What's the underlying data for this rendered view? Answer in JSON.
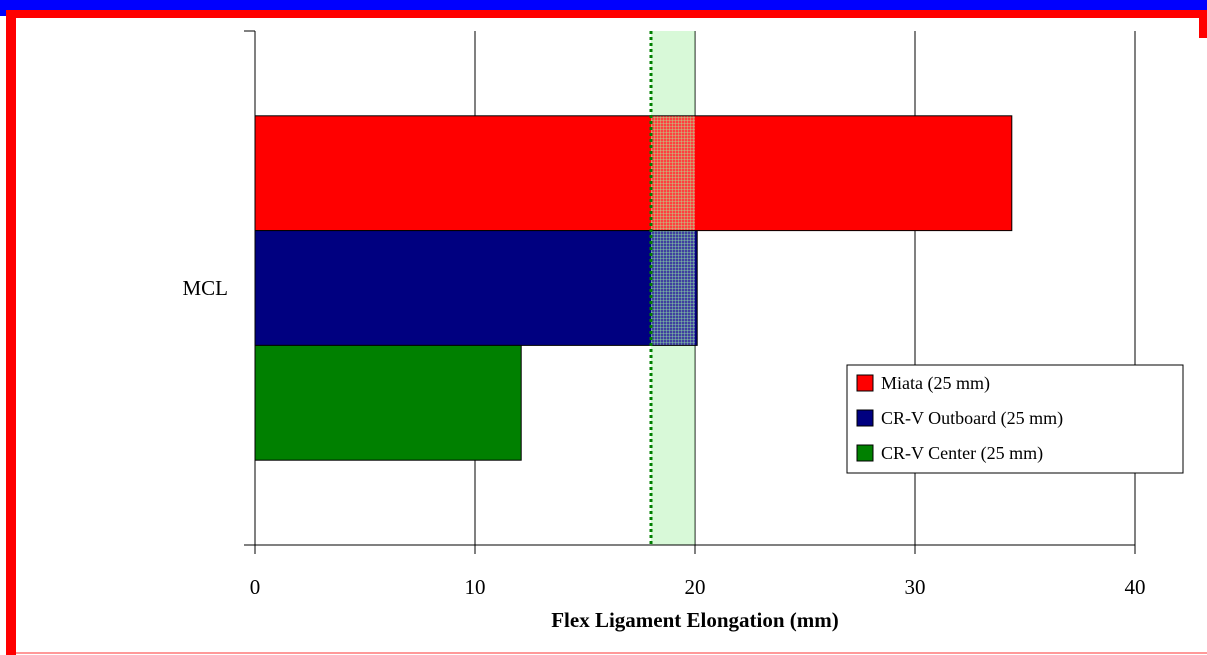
{
  "chart_data": {
    "type": "bar",
    "orientation": "horizontal",
    "categories": [
      "MCL"
    ],
    "series": [
      {
        "name": "Miata (25 mm)",
        "values": [
          34.4
        ],
        "color": "#ff0000"
      },
      {
        "name": "CR-V Outboard (25 mm)",
        "values": [
          20.1
        ],
        "color": "#000080"
      },
      {
        "name": "CR-V Center (25 mm)",
        "values": [
          12.1
        ],
        "color": "#008000"
      }
    ],
    "xlabel": "Flex Ligament Elongation (mm)",
    "ylabel": "",
    "xlim": [
      0,
      40
    ],
    "xticks": [
      0,
      10,
      20,
      30,
      40
    ],
    "grid": true,
    "legend_position": "right",
    "reference_band": {
      "from": 18,
      "to": 20,
      "color": "#90ee90"
    },
    "reference_line": {
      "x": 18,
      "color": "#008000",
      "style": "dotted"
    }
  },
  "frame_colors": {
    "outer_blue": "#0000ff",
    "outer_red": "#ff0000",
    "inner_bottom": "#ff9999"
  }
}
